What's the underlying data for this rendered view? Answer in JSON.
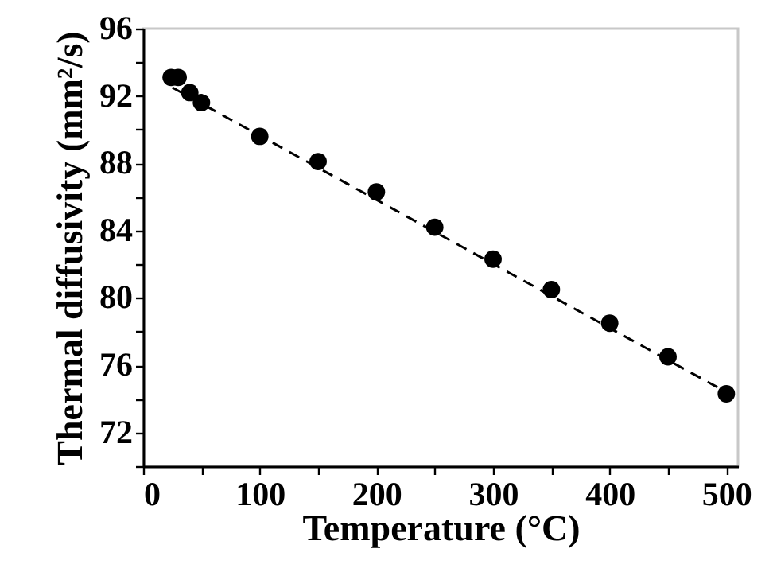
{
  "chart_data": {
    "type": "scatter",
    "xlabel": "Temperature (°C)",
    "ylabel": "Thermal diffusivity (mm²/s)",
    "xlim": [
      0,
      510
    ],
    "ylim": [
      70,
      96
    ],
    "xticks": [
      0,
      {
        "value": 50,
        "label": null
      },
      100,
      {
        "value": 150,
        "label": null
      },
      200,
      {
        "value": 250,
        "label": null
      },
      300,
      {
        "value": 350,
        "label": null
      },
      400,
      {
        "value": 450,
        "label": null
      },
      500
    ],
    "yticks": [
      {
        "value": 70,
        "label": null
      },
      72,
      {
        "value": 74,
        "label": null
      },
      76,
      {
        "value": 78,
        "label": null
      },
      80,
      {
        "value": 82,
        "label": null
      },
      84,
      {
        "value": 86,
        "label": null
      },
      88,
      {
        "value": 90,
        "label": null
      },
      92,
      {
        "value": 94,
        "label": null
      },
      96
    ],
    "grid": false,
    "series": [
      {
        "color": "#000000",
        "marker": "circle",
        "x": [
          24,
          30,
          40,
          50,
          100,
          150,
          200,
          250,
          300,
          350,
          400,
          450,
          500
        ],
        "values": [
          93.1,
          93.1,
          92.2,
          91.6,
          89.6,
          88.1,
          86.3,
          84.2,
          82.3,
          80.5,
          78.5,
          76.5,
          74.3
        ]
      },
      {
        "type": "line",
        "color": "#000000",
        "line_style": "dashed",
        "marker": "none",
        "x": [
          25,
          500
        ],
        "values": [
          92.5,
          74.4
        ]
      }
    ]
  }
}
